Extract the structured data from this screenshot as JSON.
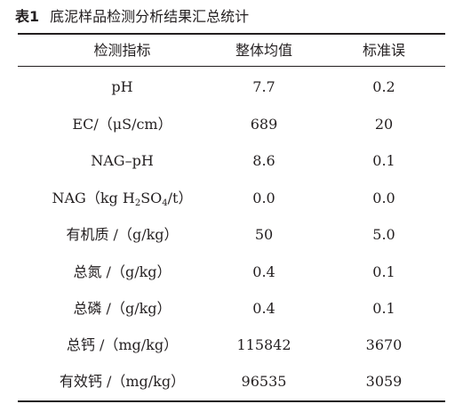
{
  "caption": {
    "number": "表1",
    "title": "底泥样品检测分析结果汇总统计"
  },
  "table": {
    "headers": [
      "检测指标",
      "整体均值",
      "标准误"
    ],
    "rows": [
      {
        "indicator": "pH",
        "mean": "7.7",
        "se": "0.2"
      },
      {
        "indicator": "EC/（μS/cm）",
        "mean": "689",
        "se": "20"
      },
      {
        "indicator": "NAG–pH",
        "mean": "8.6",
        "se": "0.1"
      },
      {
        "indicator_parts": [
          "NAG（kg H",
          "2",
          "SO",
          "4",
          "/t）"
        ],
        "mean": "0.0",
        "se": "0.0"
      },
      {
        "indicator": "有机质 /（g/kg）",
        "mean": "50",
        "se": "5.0"
      },
      {
        "indicator": "总氮 /（g/kg）",
        "mean": "0.4",
        "se": "0.1"
      },
      {
        "indicator": "总磷 /（g/kg）",
        "mean": "0.4",
        "se": "0.1"
      },
      {
        "indicator": "总钙 /（mg/kg）",
        "mean": "115842",
        "se": "3670"
      },
      {
        "indicator": "有效钙 /（mg/kg）",
        "mean": "96535",
        "se": "3059"
      }
    ]
  }
}
